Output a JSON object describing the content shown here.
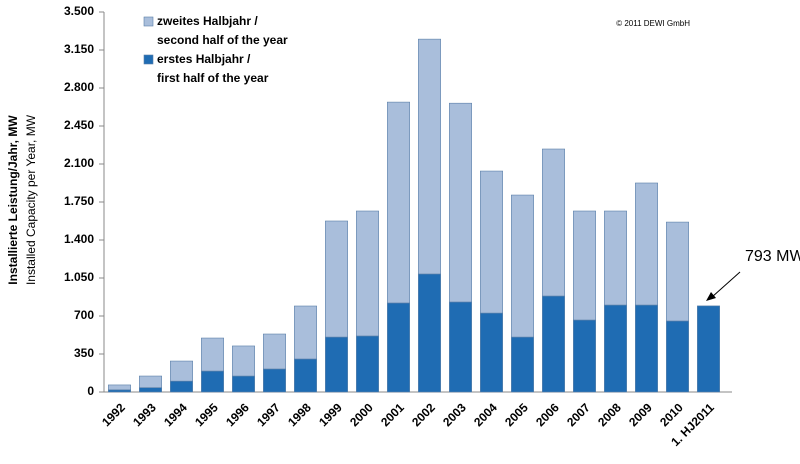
{
  "chart_data": {
    "type": "bar",
    "stacked": true,
    "ylabel": "Installierte Leistung/Jahr, MW",
    "ylabel2": "Installed Capacity per Year, MW",
    "copyright": "© 2011 DEWI GmbH",
    "annotation": "793 MW",
    "categories": [
      "1992",
      "1993",
      "1994",
      "1995",
      "1996",
      "1997",
      "1998",
      "1999",
      "2000",
      "2001",
      "2002",
      "2003",
      "2004",
      "2005",
      "2006",
      "2007",
      "2008",
      "2009",
      "2010",
      "1. HJ2011"
    ],
    "series": [
      {
        "name": [
          "erstes Halbjahr  /",
          "first half of the year"
        ],
        "color": "#1f6cb3",
        "values": [
          20,
          40,
          100,
          193,
          147,
          212,
          304,
          506,
          516,
          820,
          1087,
          829,
          727,
          506,
          884,
          663,
          801,
          801,
          654,
          793
        ]
      },
      {
        "name": [
          "zweites Halbjahr  /",
          "second half of the year"
        ],
        "color": "#a9bedb",
        "values": [
          45,
          107,
          185,
          304,
          277,
          322,
          488,
          1069,
          1151,
          1850,
          2163,
          1831,
          1308,
          1308,
          1354,
          1004,
          866,
          1124,
          911,
          null
        ]
      }
    ],
    "ylim": [
      0,
      3500
    ],
    "yticks": [
      0,
      350,
      700,
      {
        "value": 1050,
        "label": "1.050"
      },
      {
        "value": 1400,
        "label": "1.400"
      },
      {
        "value": 1750,
        "label": "1.750"
      },
      {
        "value": 2100,
        "label": "2.100"
      },
      {
        "value": 2450,
        "label": "2.450"
      },
      {
        "value": 2800,
        "label": "2.800"
      },
      {
        "value": 3150,
        "label": "3.150"
      },
      {
        "value": 3500,
        "label": "3.500"
      }
    ]
  }
}
